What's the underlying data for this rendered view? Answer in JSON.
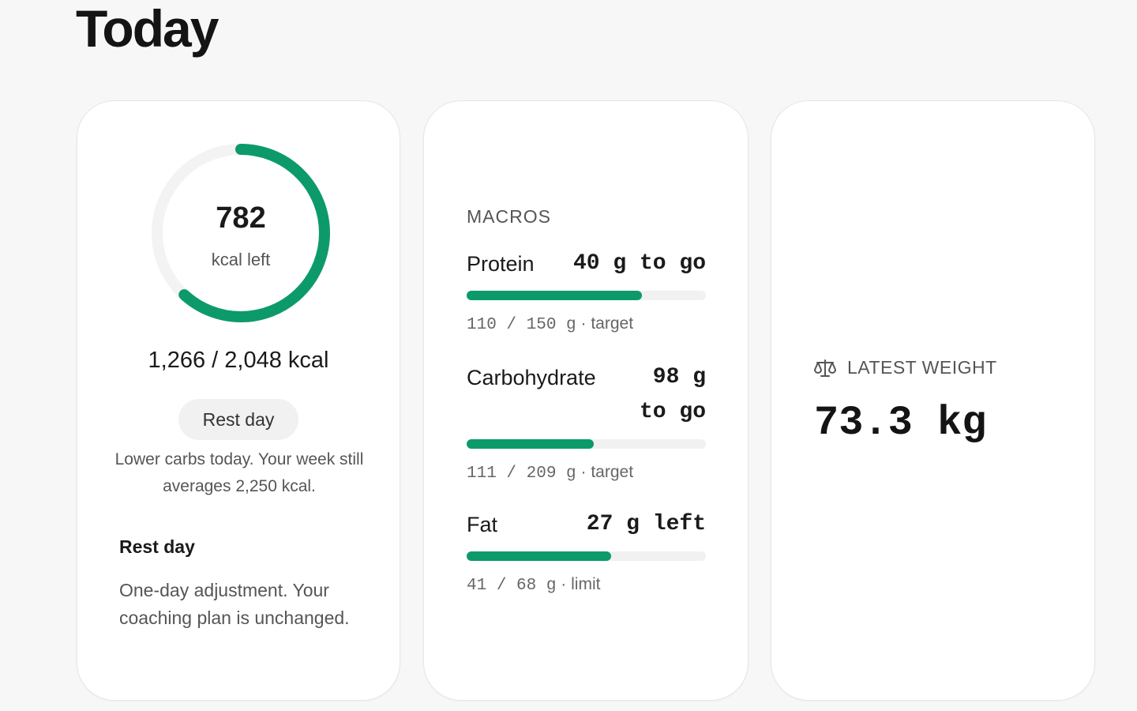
{
  "page": {
    "title": "Today"
  },
  "calories": {
    "remaining": "782",
    "remaining_unit": "kcal left",
    "consumed_progress": 0.618,
    "total_text": "1,266 / 2,048 kcal",
    "day_type": "Rest day",
    "note": "Lower carbs today. Your week still averages 2,250 kcal.",
    "heading": "Rest day",
    "description": "One-day adjustment. Your coaching plan is unchanged."
  },
  "macros": {
    "label": "MACROS",
    "items": [
      {
        "name": "Protein",
        "remaining": "40 g to go",
        "progress": 0.733,
        "current": "110",
        "goal": "150",
        "unit": "g",
        "goal_type": "target"
      },
      {
        "name": "Carbohydrate",
        "remaining": "98 g to go",
        "progress": 0.531,
        "current": "111",
        "goal": "209",
        "unit": "g",
        "goal_type": "target"
      },
      {
        "name": "Fat",
        "remaining": "27 g left",
        "progress": 0.603,
        "current": "41",
        "goal": "68",
        "unit": "g",
        "goal_type": "limit"
      }
    ]
  },
  "weight": {
    "label": "LATEST WEIGHT",
    "value": "73.3 kg",
    "icon": "scale-icon"
  },
  "colors": {
    "accent": "#0d9a6a",
    "track": "#f1f1f1",
    "background": "#f7f7f7"
  }
}
